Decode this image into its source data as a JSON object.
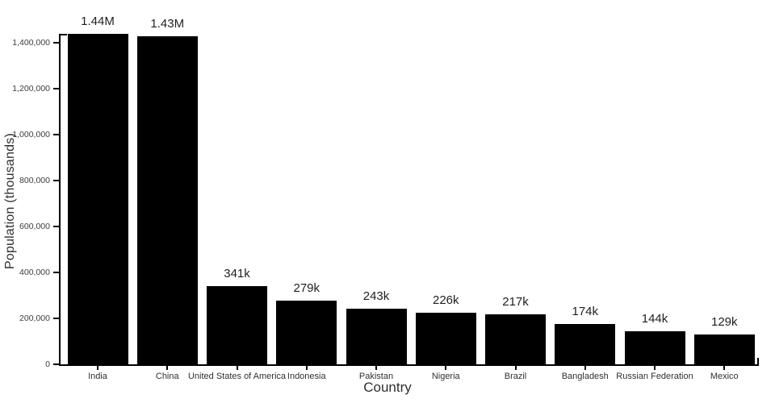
{
  "chart_data": {
    "type": "bar",
    "title": "",
    "xlabel": "Country",
    "ylabel": "Population (thousands)",
    "categories": [
      "India",
      "China",
      "United States of America",
      "Indonesia",
      "Pakistan",
      "Nigeria",
      "Brazil",
      "Bangladesh",
      "Russian Federation",
      "Mexico"
    ],
    "values": [
      1440000,
      1430000,
      341000,
      279000,
      243000,
      226000,
      217000,
      174000,
      144000,
      129000
    ],
    "bar_labels": [
      "1.44M",
      "1.43M",
      "341k",
      "279k",
      "243k",
      "226k",
      "217k",
      "174k",
      "144k",
      "129k"
    ],
    "y_ticks": [
      0,
      200000,
      400000,
      600000,
      800000,
      1000000,
      1200000,
      1400000
    ],
    "y_tick_labels": [
      "0",
      "200,000",
      "400,000",
      "600,000",
      "800,000",
      "1,000,000",
      "1,200,000",
      "1,400,000"
    ],
    "ylim": [
      0,
      1440000
    ],
    "grid": false,
    "legend": "none",
    "colors": {
      "bar": "#000000",
      "axis": "#000000",
      "tick_text": "#3c3c3c",
      "value_text": "#1f1f1f"
    }
  }
}
